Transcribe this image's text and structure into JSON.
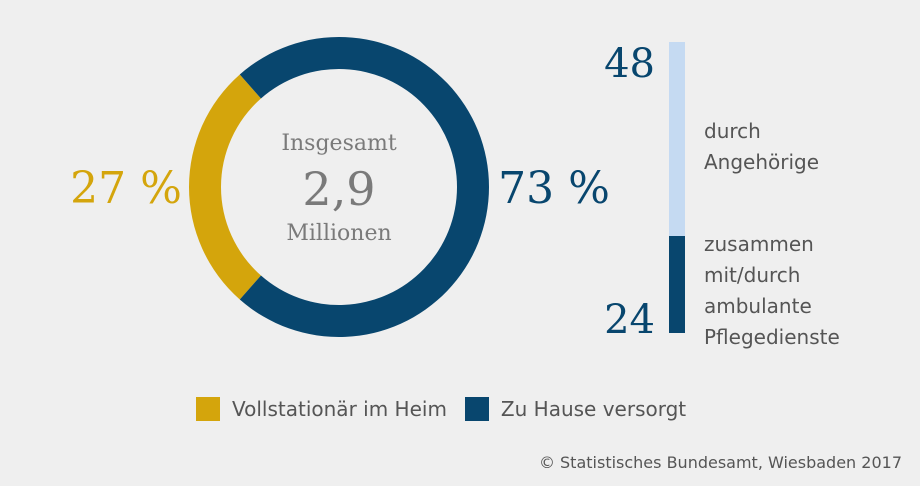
{
  "chart_data": [
    {
      "type": "pie",
      "donut": true,
      "series": [
        {
          "name": "Vollstationär im Heim",
          "value": 27,
          "label": "27 %",
          "color": "#d4a50c"
        },
        {
          "name": "Zu Hause versorgt",
          "value": 73,
          "label": "73 %",
          "color": "#08466e"
        }
      ],
      "center": {
        "line1": "Insgesamt",
        "value": "2,9",
        "line3": "Millionen"
      }
    },
    {
      "type": "bar",
      "stacked": true,
      "orientation": "vertical",
      "segments": [
        {
          "value": 48,
          "label": "48",
          "description": [
            "durch",
            "Angehörige"
          ],
          "color": "#c5daf2"
        },
        {
          "value": 24,
          "label": "24",
          "description": [
            "zusammen",
            "mit/durch",
            "ambulante",
            "Pflegedienste"
          ],
          "color": "#08466e"
        }
      ]
    }
  ],
  "legend": [
    {
      "label": "Vollstationär im Heim",
      "color": "#d4a50c"
    },
    {
      "label": "Zu Hause versorgt",
      "color": "#08466e"
    }
  ],
  "copyright": "© Statistisches Bundesamt, Wiesbaden 2017",
  "colors": {
    "background": "#efefef",
    "text_gray": "#555555",
    "center_gray": "#7a7a7a"
  }
}
